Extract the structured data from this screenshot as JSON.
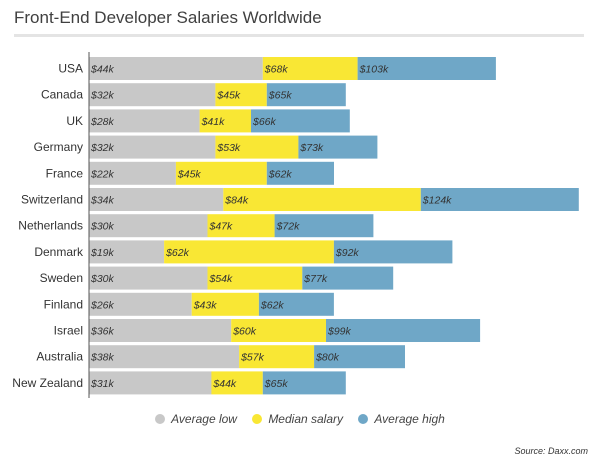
{
  "chart_data": {
    "type": "bar",
    "title": "Front-End Developer Salaries Worldwide",
    "source": "Source: Daxx.com",
    "categories": [
      "USA",
      "Canada",
      "UK",
      "Germany",
      "France",
      "Switzerland",
      "Netherlands",
      "Denmark",
      "Sweden",
      "Finland",
      "Israel",
      "Australia",
      "New Zealand"
    ],
    "series": [
      {
        "name": "Average low",
        "color": "#c8c8c8",
        "values": [
          44,
          32,
          28,
          32,
          22,
          34,
          30,
          19,
          30,
          26,
          36,
          38,
          31
        ],
        "labels": [
          "$44k",
          "$32k",
          "$28k",
          "$32k",
          "$22k",
          "$34k",
          "$30k",
          "$19k",
          "$30k",
          "$26k",
          "$36k",
          "$38k",
          "$31k"
        ]
      },
      {
        "name": "Median salary",
        "color": "#f9e734",
        "values": [
          68,
          45,
          41,
          53,
          45,
          84,
          47,
          62,
          54,
          43,
          60,
          57,
          44
        ],
        "labels": [
          "$68k",
          "$45k",
          "$41k",
          "$53k",
          "$45k",
          "$84k",
          "$47k",
          "$62k",
          "$54k",
          "$43k",
          "$60k",
          "$57k",
          "$44k"
        ]
      },
      {
        "name": "Average high",
        "color": "#6fa7c7",
        "values": [
          103,
          65,
          66,
          73,
          62,
          124,
          72,
          92,
          77,
          62,
          99,
          80,
          65
        ],
        "labels": [
          "$103k",
          "$65k",
          "$66k",
          "$73k",
          "$62k",
          "$124k",
          "$72k",
          "$92k",
          "$77k",
          "$62k",
          "$99k",
          "$80k",
          "$65k"
        ]
      }
    ],
    "legend_position": "bottom"
  }
}
